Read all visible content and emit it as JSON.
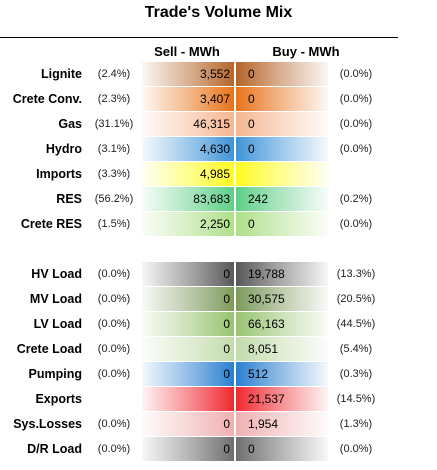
{
  "chart_data": {
    "type": "table",
    "title": "Trade's Volume Mix",
    "columns": [
      "Sell - MWh",
      "Buy - MWh"
    ],
    "rows": [
      {
        "label": "Lignite",
        "sell_pct": "(2.4%)",
        "sell": "3,552",
        "buy": "0",
        "buy_pct": "(0.0%)",
        "color": "#b5652a",
        "group": 1
      },
      {
        "label": "Crete Conv.",
        "sell_pct": "(2.3%)",
        "sell": "3,407",
        "buy": "0",
        "buy_pct": "(0.0%)",
        "color": "#e8731a",
        "group": 1
      },
      {
        "label": "Gas",
        "sell_pct": "(31.1%)",
        "sell": "46,315",
        "buy": "0",
        "buy_pct": "(0.0%)",
        "color": "#f6b690",
        "group": 1
      },
      {
        "label": "Hydro",
        "sell_pct": "(3.1%)",
        "sell": "4,630",
        "buy": "0",
        "buy_pct": "(0.0%)",
        "color": "#3f94d8",
        "group": 1
      },
      {
        "label": "Imports",
        "sell_pct": "(3.3%)",
        "sell": "4,985",
        "buy": "",
        "buy_pct": "",
        "color": "#fffc20",
        "group": 1
      },
      {
        "label": "RES",
        "sell_pct": "(56.2%)",
        "sell": "83,683",
        "buy": "242",
        "buy_pct": "(0.2%)",
        "color": "#5dcf86",
        "group": 1
      },
      {
        "label": "Crete RES",
        "sell_pct": "(1.5%)",
        "sell": "2,250",
        "buy": "0",
        "buy_pct": "(0.0%)",
        "color": "#aee088",
        "group": 1
      },
      {
        "label": "HV Load",
        "sell_pct": "(0.0%)",
        "sell": "0",
        "buy": "19,788",
        "buy_pct": "(13.3%)",
        "color": "#585858",
        "group": 2
      },
      {
        "label": "MV Load",
        "sell_pct": "(0.0%)",
        "sell": "0",
        "buy": "30,575",
        "buy_pct": "(20.5%)",
        "color": "#7d9a5c",
        "group": 2
      },
      {
        "label": "LV Load",
        "sell_pct": "(0.0%)",
        "sell": "0",
        "buy": "66,163",
        "buy_pct": "(44.5%)",
        "color": "#98c470",
        "group": 2
      },
      {
        "label": "Crete Load",
        "sell_pct": "(0.0%)",
        "sell": "0",
        "buy": "8,051",
        "buy_pct": "(5.4%)",
        "color": "#c2dcab",
        "group": 2
      },
      {
        "label": "Pumping",
        "sell_pct": "(0.0%)",
        "sell": "0",
        "buy": "512",
        "buy_pct": "(0.3%)",
        "color": "#2a7fd0",
        "group": 2
      },
      {
        "label": "Exports",
        "sell_pct": "",
        "sell": "",
        "buy": "21,537",
        "buy_pct": "(14.5%)",
        "color": "#f0282f",
        "group": 2
      },
      {
        "label": "Sys.Losses",
        "sell_pct": "(0.0%)",
        "sell": "0",
        "buy": "1,954",
        "buy_pct": "(1.3%)",
        "color": "#f0b0b0",
        "group": 2
      },
      {
        "label": "D/R Load",
        "sell_pct": "(0.0%)",
        "sell": "0",
        "buy": "0",
        "buy_pct": "(0.0%)",
        "color": "#6f6f6f",
        "group": 2
      }
    ]
  }
}
